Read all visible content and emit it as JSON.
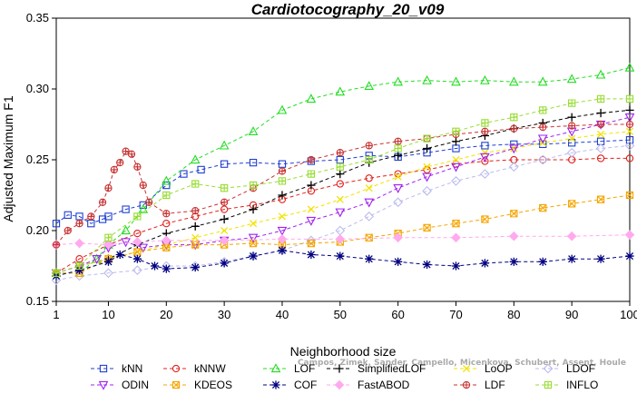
{
  "chart_data": {
    "type": "line",
    "title": "Cardiotocography_20_v09",
    "xlabel": "Neighborhood size",
    "ylabel": "Adjusted Maximum F1",
    "xlim": [
      1,
      100
    ],
    "ylim": [
      0.15,
      0.35
    ],
    "xticks": [
      "1",
      "10",
      "20",
      "30",
      "40",
      "50",
      "60",
      "70",
      "80",
      "90",
      "100"
    ],
    "yticks": [
      "0.15",
      "0.20",
      "0.25",
      "0.30",
      "0.35"
    ],
    "grid": false,
    "legend_position": "bottom",
    "x_range": [
      1,
      100
    ],
    "series": [
      {
        "name": "kNN",
        "color": "#1f3fd0",
        "marker": "square",
        "dashed": true,
        "points": [
          [
            1,
            0.205
          ],
          [
            3,
            0.211
          ],
          [
            5,
            0.21
          ],
          [
            7,
            0.205
          ],
          [
            9,
            0.208
          ],
          [
            10,
            0.21
          ],
          [
            13,
            0.215
          ],
          [
            16,
            0.218
          ],
          [
            20,
            0.232
          ],
          [
            23,
            0.24
          ],
          [
            26,
            0.243
          ],
          [
            30,
            0.247
          ],
          [
            35,
            0.248
          ],
          [
            40,
            0.247
          ],
          [
            45,
            0.249
          ],
          [
            50,
            0.25
          ],
          [
            55,
            0.253
          ],
          [
            60,
            0.252
          ],
          [
            65,
            0.255
          ],
          [
            70,
            0.258
          ],
          [
            75,
            0.26
          ],
          [
            80,
            0.261
          ],
          [
            85,
            0.261
          ],
          [
            90,
            0.262
          ],
          [
            95,
            0.263
          ],
          [
            100,
            0.264
          ]
        ]
      },
      {
        "name": "kNNW",
        "color": "#e0201c",
        "marker": "circle",
        "dashed": true,
        "points": [
          [
            1,
            0.17
          ],
          [
            5,
            0.18
          ],
          [
            10,
            0.19
          ],
          [
            15,
            0.198
          ],
          [
            20,
            0.205
          ],
          [
            25,
            0.21
          ],
          [
            30,
            0.215
          ],
          [
            35,
            0.218
          ],
          [
            40,
            0.222
          ],
          [
            45,
            0.228
          ],
          [
            50,
            0.233
          ],
          [
            55,
            0.237
          ],
          [
            60,
            0.24
          ],
          [
            65,
            0.243
          ],
          [
            70,
            0.247
          ],
          [
            75,
            0.249
          ],
          [
            80,
            0.25
          ],
          [
            85,
            0.25
          ],
          [
            90,
            0.25
          ],
          [
            95,
            0.251
          ],
          [
            100,
            0.251
          ]
        ]
      },
      {
        "name": "LOF",
        "color": "#22dd22",
        "marker": "triangle",
        "dashed": true,
        "points": [
          [
            1,
            0.17
          ],
          [
            5,
            0.17
          ],
          [
            8,
            0.18
          ],
          [
            10,
            0.19
          ],
          [
            13,
            0.2
          ],
          [
            16,
            0.215
          ],
          [
            20,
            0.235
          ],
          [
            25,
            0.25
          ],
          [
            30,
            0.26
          ],
          [
            35,
            0.27
          ],
          [
            40,
            0.285
          ],
          [
            45,
            0.293
          ],
          [
            50,
            0.298
          ],
          [
            55,
            0.302
          ],
          [
            60,
            0.305
          ],
          [
            65,
            0.306
          ],
          [
            70,
            0.305
          ],
          [
            75,
            0.306
          ],
          [
            80,
            0.305
          ],
          [
            85,
            0.305
          ],
          [
            90,
            0.307
          ],
          [
            95,
            0.31
          ],
          [
            100,
            0.315
          ]
        ]
      },
      {
        "name": "SimplifiedLOF",
        "color": "#000000",
        "marker": "plus",
        "dashed": true,
        "points": [
          [
            1,
            0.17
          ],
          [
            5,
            0.175
          ],
          [
            10,
            0.18
          ],
          [
            15,
            0.19
          ],
          [
            20,
            0.198
          ],
          [
            25,
            0.203
          ],
          [
            30,
            0.208
          ],
          [
            35,
            0.215
          ],
          [
            40,
            0.225
          ],
          [
            45,
            0.232
          ],
          [
            50,
            0.24
          ],
          [
            55,
            0.248
          ],
          [
            60,
            0.253
          ],
          [
            65,
            0.258
          ],
          [
            70,
            0.263
          ],
          [
            75,
            0.267
          ],
          [
            80,
            0.272
          ],
          [
            85,
            0.276
          ],
          [
            90,
            0.28
          ],
          [
            95,
            0.283
          ],
          [
            100,
            0.285
          ]
        ]
      },
      {
        "name": "LoOP",
        "color": "#f2e200",
        "marker": "x",
        "dashed": true,
        "points": [
          [
            1,
            0.17
          ],
          [
            5,
            0.175
          ],
          [
            10,
            0.18
          ],
          [
            15,
            0.185
          ],
          [
            20,
            0.19
          ],
          [
            25,
            0.195
          ],
          [
            30,
            0.2
          ],
          [
            35,
            0.205
          ],
          [
            40,
            0.21
          ],
          [
            45,
            0.215
          ],
          [
            50,
            0.222
          ],
          [
            55,
            0.23
          ],
          [
            60,
            0.238
          ],
          [
            65,
            0.245
          ],
          [
            70,
            0.25
          ],
          [
            75,
            0.255
          ],
          [
            80,
            0.258
          ],
          [
            85,
            0.262
          ],
          [
            90,
            0.265
          ],
          [
            95,
            0.268
          ],
          [
            100,
            0.27
          ]
        ]
      },
      {
        "name": "LDOF",
        "color": "#bbbbee",
        "marker": "diamond",
        "dashed": true,
        "points": [
          [
            1,
            0.165
          ],
          [
            5,
            0.168
          ],
          [
            10,
            0.17
          ],
          [
            15,
            0.172
          ],
          [
            20,
            0.175
          ],
          [
            25,
            0.175
          ],
          [
            30,
            0.178
          ],
          [
            35,
            0.182
          ],
          [
            40,
            0.186
          ],
          [
            45,
            0.193
          ],
          [
            50,
            0.2
          ],
          [
            55,
            0.21
          ],
          [
            60,
            0.22
          ],
          [
            65,
            0.228
          ],
          [
            70,
            0.235
          ],
          [
            75,
            0.24
          ],
          [
            80,
            0.245
          ],
          [
            85,
            0.25
          ],
          [
            90,
            0.255
          ],
          [
            95,
            0.258
          ],
          [
            100,
            0.26
          ]
        ]
      },
      {
        "name": "ODIN",
        "color": "#a020f0",
        "marker": "invtriangle",
        "dashed": true,
        "points": [
          [
            1,
            0.17
          ],
          [
            5,
            0.175
          ],
          [
            8,
            0.18
          ],
          [
            10,
            0.188
          ],
          [
            13,
            0.192
          ],
          [
            16,
            0.188
          ],
          [
            20,
            0.19
          ],
          [
            25,
            0.19
          ],
          [
            30,
            0.193
          ],
          [
            35,
            0.195
          ],
          [
            40,
            0.2
          ],
          [
            45,
            0.207
          ],
          [
            50,
            0.213
          ],
          [
            55,
            0.22
          ],
          [
            60,
            0.23
          ],
          [
            65,
            0.238
          ],
          [
            70,
            0.245
          ],
          [
            75,
            0.252
          ],
          [
            80,
            0.258
          ],
          [
            85,
            0.265
          ],
          [
            90,
            0.27
          ],
          [
            95,
            0.275
          ],
          [
            100,
            0.28
          ]
        ]
      },
      {
        "name": "KDEOS",
        "color": "#f5a500",
        "marker": "boxx",
        "dashed": true,
        "points": [
          [
            1,
            0.17
          ],
          [
            5,
            0.17
          ],
          [
            10,
            0.18
          ],
          [
            15,
            0.185
          ],
          [
            20,
            0.188
          ],
          [
            25,
            0.19
          ],
          [
            30,
            0.19
          ],
          [
            35,
            0.191
          ],
          [
            40,
            0.19
          ],
          [
            45,
            0.191
          ],
          [
            50,
            0.192
          ],
          [
            55,
            0.195
          ],
          [
            60,
            0.198
          ],
          [
            65,
            0.202
          ],
          [
            70,
            0.205
          ],
          [
            75,
            0.208
          ],
          [
            80,
            0.212
          ],
          [
            85,
            0.216
          ],
          [
            90,
            0.219
          ],
          [
            95,
            0.222
          ],
          [
            100,
            0.225
          ]
        ]
      },
      {
        "name": "COF",
        "color": "#000080",
        "marker": "asterisk",
        "dashed": true,
        "points": [
          [
            1,
            0.168
          ],
          [
            5,
            0.172
          ],
          [
            10,
            0.178
          ],
          [
            12,
            0.183
          ],
          [
            15,
            0.18
          ],
          [
            18,
            0.175
          ],
          [
            20,
            0.173
          ],
          [
            25,
            0.174
          ],
          [
            30,
            0.177
          ],
          [
            35,
            0.182
          ],
          [
            40,
            0.186
          ],
          [
            45,
            0.183
          ],
          [
            50,
            0.182
          ],
          [
            55,
            0.18
          ],
          [
            60,
            0.178
          ],
          [
            65,
            0.176
          ],
          [
            70,
            0.175
          ],
          [
            75,
            0.177
          ],
          [
            80,
            0.178
          ],
          [
            85,
            0.178
          ],
          [
            90,
            0.18
          ],
          [
            95,
            0.18
          ],
          [
            100,
            0.182
          ]
        ]
      },
      {
        "name": "FastABOD",
        "color": "#ffaaee",
        "marker": "diamondfill",
        "dashed": true,
        "points": [
          [
            1,
            0.19
          ],
          [
            5,
            0.191
          ],
          [
            10,
            0.19
          ],
          [
            15,
            0.192
          ],
          [
            20,
            0.193
          ],
          [
            30,
            0.193
          ],
          [
            40,
            0.194
          ],
          [
            50,
            0.194
          ],
          [
            60,
            0.195
          ],
          [
            70,
            0.195
          ],
          [
            80,
            0.196
          ],
          [
            90,
            0.196
          ],
          [
            100,
            0.197
          ]
        ]
      },
      {
        "name": "LDF",
        "color": "#c83232",
        "marker": "circleplus",
        "dashed": true,
        "points": [
          [
            1,
            0.19
          ],
          [
            3,
            0.2
          ],
          [
            5,
            0.205
          ],
          [
            7,
            0.21
          ],
          [
            9,
            0.22
          ],
          [
            10,
            0.23
          ],
          [
            11,
            0.243
          ],
          [
            12,
            0.248
          ],
          [
            13,
            0.256
          ],
          [
            14,
            0.254
          ],
          [
            15,
            0.245
          ],
          [
            16,
            0.232
          ],
          [
            17,
            0.22
          ],
          [
            20,
            0.212
          ],
          [
            25,
            0.214
          ],
          [
            30,
            0.22
          ],
          [
            35,
            0.23
          ],
          [
            40,
            0.242
          ],
          [
            45,
            0.25
          ],
          [
            50,
            0.255
          ],
          [
            55,
            0.26
          ],
          [
            60,
            0.263
          ],
          [
            65,
            0.265
          ],
          [
            70,
            0.268
          ],
          [
            75,
            0.27
          ],
          [
            80,
            0.272
          ],
          [
            85,
            0.273
          ],
          [
            90,
            0.274
          ],
          [
            95,
            0.275
          ],
          [
            100,
            0.275
          ]
        ]
      },
      {
        "name": "INFLO",
        "color": "#99dd33",
        "marker": "boxplus",
        "dashed": true,
        "points": [
          [
            1,
            0.17
          ],
          [
            5,
            0.175
          ],
          [
            10,
            0.195
          ],
          [
            15,
            0.21
          ],
          [
            20,
            0.225
          ],
          [
            25,
            0.233
          ],
          [
            30,
            0.23
          ],
          [
            35,
            0.232
          ],
          [
            40,
            0.235
          ],
          [
            45,
            0.24
          ],
          [
            50,
            0.245
          ],
          [
            55,
            0.25
          ],
          [
            60,
            0.258
          ],
          [
            65,
            0.265
          ],
          [
            70,
            0.27
          ],
          [
            75,
            0.276
          ],
          [
            80,
            0.28
          ],
          [
            85,
            0.285
          ],
          [
            90,
            0.29
          ],
          [
            95,
            0.293
          ],
          [
            100,
            0.293
          ]
        ]
      }
    ],
    "watermark": "Campos, Zimek, Sander, Campello, Micenkova, Schubert, Assent, Houle"
  }
}
